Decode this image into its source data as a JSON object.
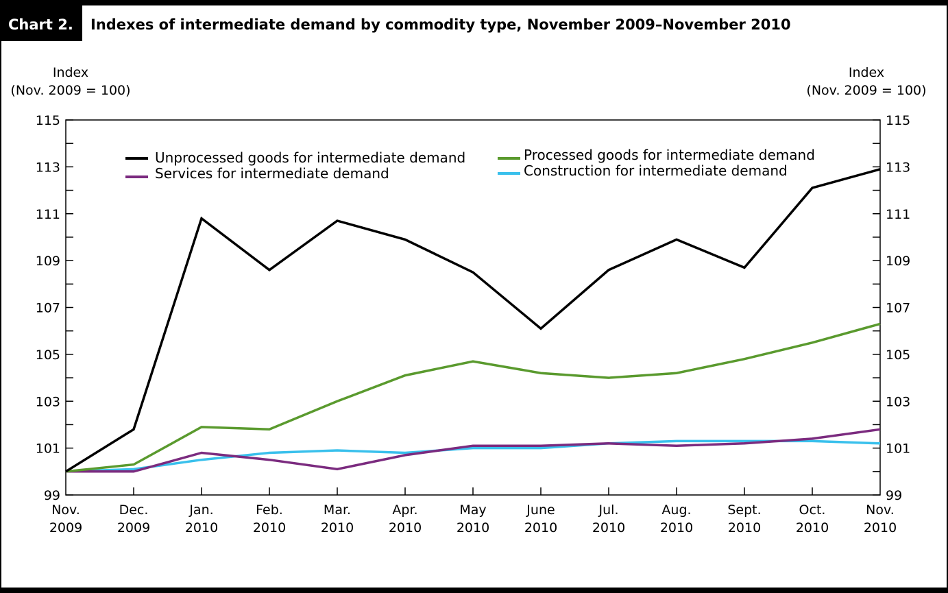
{
  "header": {
    "badge": "Chart 2.",
    "title": "Indexes of intermediate demand by commodity type, November 2009–November 2010"
  },
  "colors": {
    "frame": "#000000",
    "unprocessed": "#000000",
    "processed": "#5a9a2e",
    "services": "#7b2b7f",
    "construction": "#39c0ec"
  },
  "chart_data": {
    "type": "line",
    "y_axis_left": {
      "label_line1": "Index",
      "label_line2": "(Nov. 2009 = 100)"
    },
    "y_axis_right": {
      "label_line1": "Index",
      "label_line2": "(Nov. 2009 = 100)"
    },
    "ylim": [
      99,
      115
    ],
    "y_ticks": [
      "99",
      "101",
      "103",
      "105",
      "107",
      "109",
      "111",
      "113",
      "115"
    ],
    "categories": [
      [
        "Nov.",
        "2009"
      ],
      [
        "Dec.",
        "2009"
      ],
      [
        "Jan.",
        "2010"
      ],
      [
        "Feb.",
        "2010"
      ],
      [
        "Mar.",
        "2010"
      ],
      [
        "Apr.",
        "2010"
      ],
      [
        "May",
        "2010"
      ],
      [
        "June",
        "2010"
      ],
      [
        "Jul.",
        "2010"
      ],
      [
        "Aug.",
        "2010"
      ],
      [
        "Sept.",
        "2010"
      ],
      [
        "Oct.",
        "2010"
      ],
      [
        "Nov.",
        "2010"
      ]
    ],
    "grid": false,
    "legend_position": "top",
    "series": [
      {
        "name": "Unprocessed goods for intermediate demand",
        "color": "#000000",
        "values": [
          100.0,
          101.8,
          110.8,
          108.6,
          110.7,
          109.9,
          108.5,
          106.1,
          108.6,
          109.9,
          108.7,
          112.1,
          112.9
        ]
      },
      {
        "name": "Processed goods for intermediate demand",
        "color": "#5a9a2e",
        "values": [
          100.0,
          100.3,
          101.9,
          101.8,
          103.0,
          104.1,
          104.7,
          104.2,
          104.0,
          104.2,
          104.8,
          105.5,
          106.3
        ]
      },
      {
        "name": "Services for intermediate demand",
        "color": "#7b2b7f",
        "values": [
          100.0,
          100.0,
          100.8,
          100.5,
          100.1,
          100.7,
          101.1,
          101.1,
          101.2,
          101.1,
          101.2,
          101.4,
          101.8
        ]
      },
      {
        "name": "Construction for intermediate demand",
        "color": "#39c0ec",
        "values": [
          100.0,
          100.1,
          100.5,
          100.8,
          100.9,
          100.8,
          101.0,
          101.0,
          101.2,
          101.3,
          101.3,
          101.3,
          101.2
        ]
      }
    ]
  }
}
